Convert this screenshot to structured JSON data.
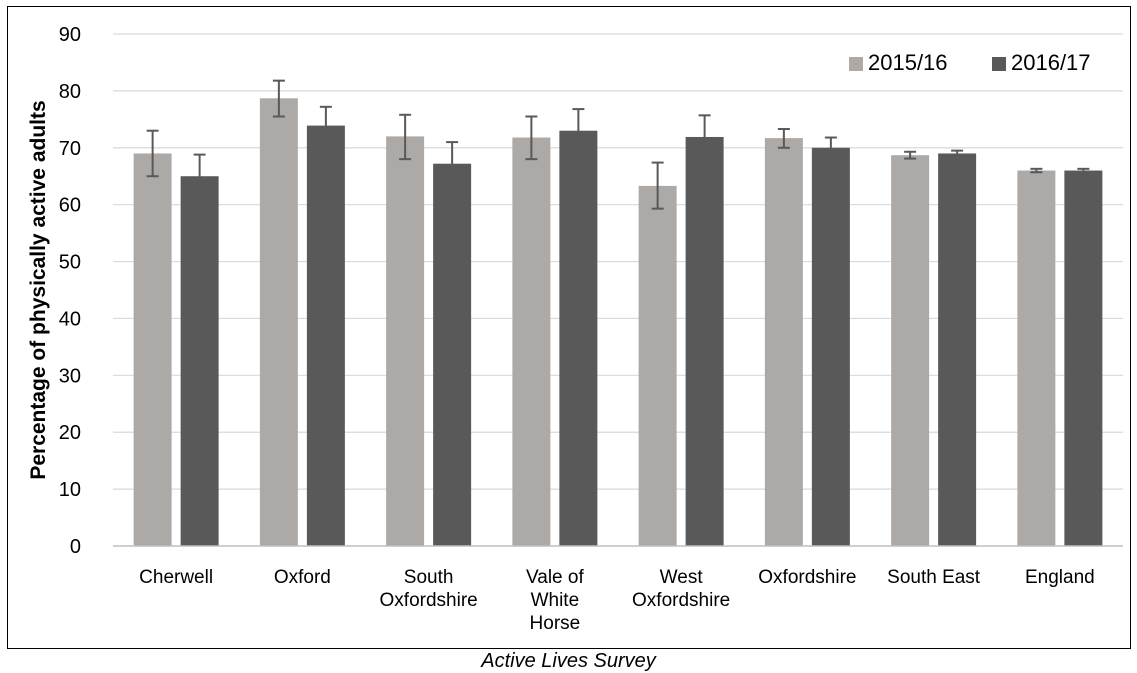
{
  "caption": "Active Lives Survey",
  "colors": {
    "s2015": "#ADA9A7",
    "s2016": "#595959",
    "grid": "#D9D9D9",
    "axis": "#000000",
    "error": "#595959"
  },
  "chart_data": {
    "type": "bar",
    "title": "",
    "xlabel": "",
    "ylabel": "Percentage of physically active adults",
    "ylim": [
      0,
      90
    ],
    "yticks": [
      0,
      10,
      20,
      30,
      40,
      50,
      60,
      70,
      80,
      90
    ],
    "grid": true,
    "legend_position": "top-right",
    "categories": [
      [
        "Cherwell"
      ],
      [
        "Oxford"
      ],
      [
        "South",
        "Oxfordshire"
      ],
      [
        "Vale of",
        "White",
        "Horse"
      ],
      [
        "West",
        "Oxfordshire"
      ],
      [
        "Oxfordshire"
      ],
      [
        "South East"
      ],
      [
        "England"
      ]
    ],
    "series": [
      {
        "name": "2015/16",
        "values": [
          69,
          78.7,
          72,
          71.8,
          63.3,
          71.7,
          68.7,
          66
        ],
        "error_low": [
          65,
          75.5,
          68,
          68,
          59.3,
          70,
          68.1,
          65.7
        ],
        "error_high": [
          73,
          81.8,
          75.8,
          75.5,
          67.4,
          73.3,
          69.3,
          66.3
        ]
      },
      {
        "name": "2016/17",
        "values": [
          65,
          73.9,
          67.2,
          73,
          71.9,
          70,
          69,
          66
        ],
        "error_low": [
          61.2,
          70.5,
          63.5,
          69.5,
          68.2,
          68.2,
          68.5,
          65.7
        ],
        "error_high": [
          68.8,
          77.2,
          71,
          76.8,
          75.7,
          71.8,
          69.5,
          66.3
        ]
      }
    ]
  }
}
